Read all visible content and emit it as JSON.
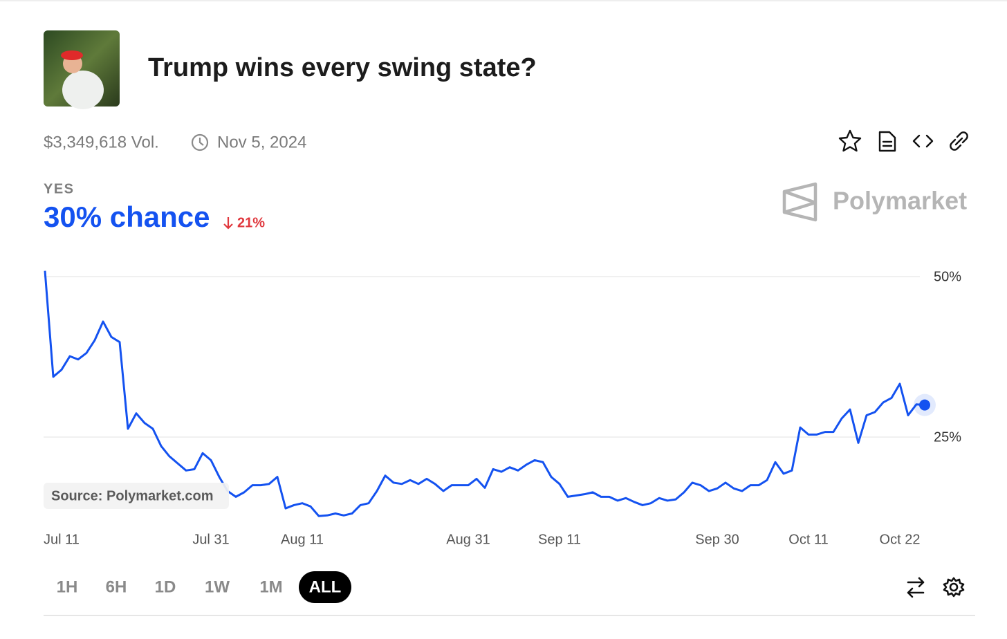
{
  "header": {
    "title": "Trump wins every swing state?",
    "volume": "$3,349,618 Vol.",
    "end_date": "Nov 5, 2024",
    "outcome": "YES",
    "chance": "30% chance",
    "change": "21%",
    "brand": "Polymarket",
    "source": "Source: Polymarket.com"
  },
  "ranges": {
    "options": [
      "1H",
      "6H",
      "1D",
      "1W",
      "1M",
      "ALL"
    ],
    "active": "ALL"
  },
  "chart_data": {
    "type": "line",
    "color": "#1452f0",
    "grid": true,
    "ylim": [
      11,
      51
    ],
    "yticks": [
      {
        "value": 25,
        "label": "25%"
      },
      {
        "value": 50,
        "label": "50%"
      }
    ],
    "categories": [
      "Jul 11",
      null,
      null,
      null,
      null,
      null,
      null,
      null,
      null,
      null,
      null,
      null,
      null,
      null,
      null,
      null,
      null,
      null,
      null,
      null,
      "Jul 31",
      null,
      null,
      null,
      null,
      null,
      null,
      null,
      null,
      null,
      null,
      "Aug 11",
      null,
      null,
      null,
      null,
      null,
      null,
      null,
      null,
      null,
      null,
      null,
      null,
      null,
      null,
      null,
      null,
      null,
      null,
      null,
      "Aug 31",
      null,
      null,
      null,
      null,
      null,
      null,
      null,
      null,
      null,
      null,
      "Sep 11",
      null,
      null,
      null,
      null,
      null,
      null,
      null,
      null,
      null,
      null,
      null,
      null,
      null,
      null,
      null,
      null,
      null,
      null,
      "Sep 30",
      null,
      null,
      null,
      null,
      null,
      null,
      null,
      null,
      null,
      null,
      "Oct 11",
      null,
      null,
      null,
      null,
      null,
      null,
      null,
      null,
      null,
      null,
      "Oct 22",
      null,
      null,
      null
    ],
    "values": [
      50.9,
      34.4,
      35.5,
      37.6,
      37.1,
      38.1,
      40.1,
      43.0,
      40.6,
      39.8,
      26.3,
      28.7,
      27.2,
      26.3,
      23.6,
      22.0,
      20.9,
      19.8,
      20.0,
      22.5,
      21.4,
      18.8,
      16.6,
      15.7,
      16.4,
      17.5,
      17.5,
      17.7,
      18.8,
      13.9,
      14.4,
      14.7,
      14.2,
      12.7,
      12.8,
      13.1,
      12.8,
      13.1,
      14.4,
      14.7,
      16.6,
      19.0,
      17.9,
      17.7,
      18.3,
      17.7,
      18.5,
      17.7,
      16.6,
      17.5,
      17.5,
      17.5,
      18.5,
      17.1,
      20.0,
      19.6,
      20.3,
      19.8,
      20.7,
      21.4,
      21.1,
      18.8,
      17.7,
      15.7,
      15.9,
      16.1,
      16.4,
      15.7,
      15.7,
      15.1,
      15.5,
      14.9,
      14.4,
      14.7,
      15.5,
      15.1,
      15.3,
      16.4,
      17.9,
      17.5,
      16.6,
      17.0,
      17.9,
      17.0,
      16.6,
      17.5,
      17.5,
      18.3,
      21.1,
      19.3,
      19.8,
      26.5,
      25.4,
      25.4,
      25.8,
      25.8,
      27.9,
      29.3,
      24.1,
      28.4,
      28.9,
      30.4,
      31.1,
      33.3,
      28.4,
      30.1,
      30.0
    ]
  }
}
